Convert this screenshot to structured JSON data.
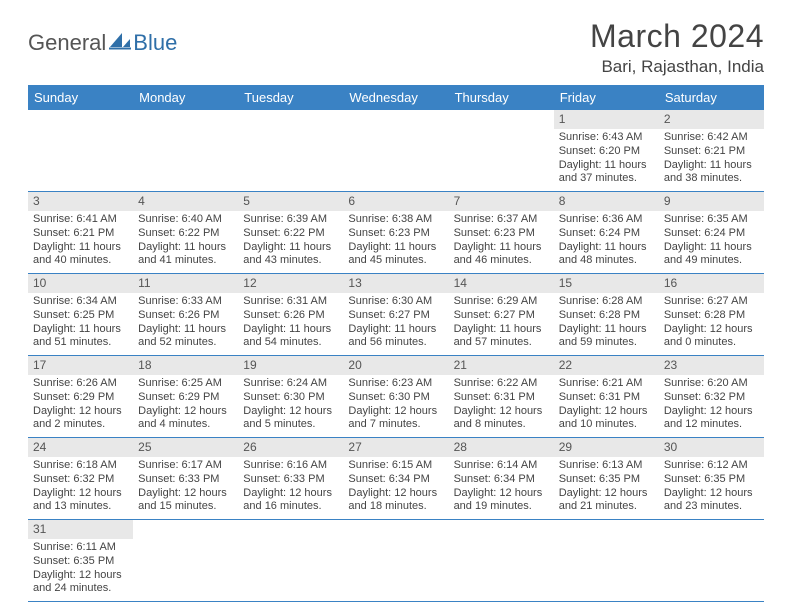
{
  "logo": {
    "text1": "General",
    "text2": "Blue"
  },
  "title": "March 2024",
  "location": "Bari, Rajasthan, India",
  "colors": {
    "header_bg": "#3a82c4",
    "header_text": "#ffffff",
    "daynum_bg": "#e8e8e8",
    "row_border": "#3a82c4",
    "body_text": "#444444",
    "logo_blue": "#2f6fa8"
  },
  "weekdays": [
    "Sunday",
    "Monday",
    "Tuesday",
    "Wednesday",
    "Thursday",
    "Friday",
    "Saturday"
  ],
  "weeks": [
    [
      null,
      null,
      null,
      null,
      null,
      {
        "n": "1",
        "sr": "6:43 AM",
        "ss": "6:20 PM",
        "dl": "11 hours and 37 minutes."
      },
      {
        "n": "2",
        "sr": "6:42 AM",
        "ss": "6:21 PM",
        "dl": "11 hours and 38 minutes."
      }
    ],
    [
      {
        "n": "3",
        "sr": "6:41 AM",
        "ss": "6:21 PM",
        "dl": "11 hours and 40 minutes."
      },
      {
        "n": "4",
        "sr": "6:40 AM",
        "ss": "6:22 PM",
        "dl": "11 hours and 41 minutes."
      },
      {
        "n": "5",
        "sr": "6:39 AM",
        "ss": "6:22 PM",
        "dl": "11 hours and 43 minutes."
      },
      {
        "n": "6",
        "sr": "6:38 AM",
        "ss": "6:23 PM",
        "dl": "11 hours and 45 minutes."
      },
      {
        "n": "7",
        "sr": "6:37 AM",
        "ss": "6:23 PM",
        "dl": "11 hours and 46 minutes."
      },
      {
        "n": "8",
        "sr": "6:36 AM",
        "ss": "6:24 PM",
        "dl": "11 hours and 48 minutes."
      },
      {
        "n": "9",
        "sr": "6:35 AM",
        "ss": "6:24 PM",
        "dl": "11 hours and 49 minutes."
      }
    ],
    [
      {
        "n": "10",
        "sr": "6:34 AM",
        "ss": "6:25 PM",
        "dl": "11 hours and 51 minutes."
      },
      {
        "n": "11",
        "sr": "6:33 AM",
        "ss": "6:26 PM",
        "dl": "11 hours and 52 minutes."
      },
      {
        "n": "12",
        "sr": "6:31 AM",
        "ss": "6:26 PM",
        "dl": "11 hours and 54 minutes."
      },
      {
        "n": "13",
        "sr": "6:30 AM",
        "ss": "6:27 PM",
        "dl": "11 hours and 56 minutes."
      },
      {
        "n": "14",
        "sr": "6:29 AM",
        "ss": "6:27 PM",
        "dl": "11 hours and 57 minutes."
      },
      {
        "n": "15",
        "sr": "6:28 AM",
        "ss": "6:28 PM",
        "dl": "11 hours and 59 minutes."
      },
      {
        "n": "16",
        "sr": "6:27 AM",
        "ss": "6:28 PM",
        "dl": "12 hours and 0 minutes."
      }
    ],
    [
      {
        "n": "17",
        "sr": "6:26 AM",
        "ss": "6:29 PM",
        "dl": "12 hours and 2 minutes."
      },
      {
        "n": "18",
        "sr": "6:25 AM",
        "ss": "6:29 PM",
        "dl": "12 hours and 4 minutes."
      },
      {
        "n": "19",
        "sr": "6:24 AM",
        "ss": "6:30 PM",
        "dl": "12 hours and 5 minutes."
      },
      {
        "n": "20",
        "sr": "6:23 AM",
        "ss": "6:30 PM",
        "dl": "12 hours and 7 minutes."
      },
      {
        "n": "21",
        "sr": "6:22 AM",
        "ss": "6:31 PM",
        "dl": "12 hours and 8 minutes."
      },
      {
        "n": "22",
        "sr": "6:21 AM",
        "ss": "6:31 PM",
        "dl": "12 hours and 10 minutes."
      },
      {
        "n": "23",
        "sr": "6:20 AM",
        "ss": "6:32 PM",
        "dl": "12 hours and 12 minutes."
      }
    ],
    [
      {
        "n": "24",
        "sr": "6:18 AM",
        "ss": "6:32 PM",
        "dl": "12 hours and 13 minutes."
      },
      {
        "n": "25",
        "sr": "6:17 AM",
        "ss": "6:33 PM",
        "dl": "12 hours and 15 minutes."
      },
      {
        "n": "26",
        "sr": "6:16 AM",
        "ss": "6:33 PM",
        "dl": "12 hours and 16 minutes."
      },
      {
        "n": "27",
        "sr": "6:15 AM",
        "ss": "6:34 PM",
        "dl": "12 hours and 18 minutes."
      },
      {
        "n": "28",
        "sr": "6:14 AM",
        "ss": "6:34 PM",
        "dl": "12 hours and 19 minutes."
      },
      {
        "n": "29",
        "sr": "6:13 AM",
        "ss": "6:35 PM",
        "dl": "12 hours and 21 minutes."
      },
      {
        "n": "30",
        "sr": "6:12 AM",
        "ss": "6:35 PM",
        "dl": "12 hours and 23 minutes."
      }
    ],
    [
      {
        "n": "31",
        "sr": "6:11 AM",
        "ss": "6:35 PM",
        "dl": "12 hours and 24 minutes."
      },
      null,
      null,
      null,
      null,
      null,
      null
    ]
  ],
  "labels": {
    "sunrise": "Sunrise:",
    "sunset": "Sunset:",
    "daylight": "Daylight:"
  }
}
